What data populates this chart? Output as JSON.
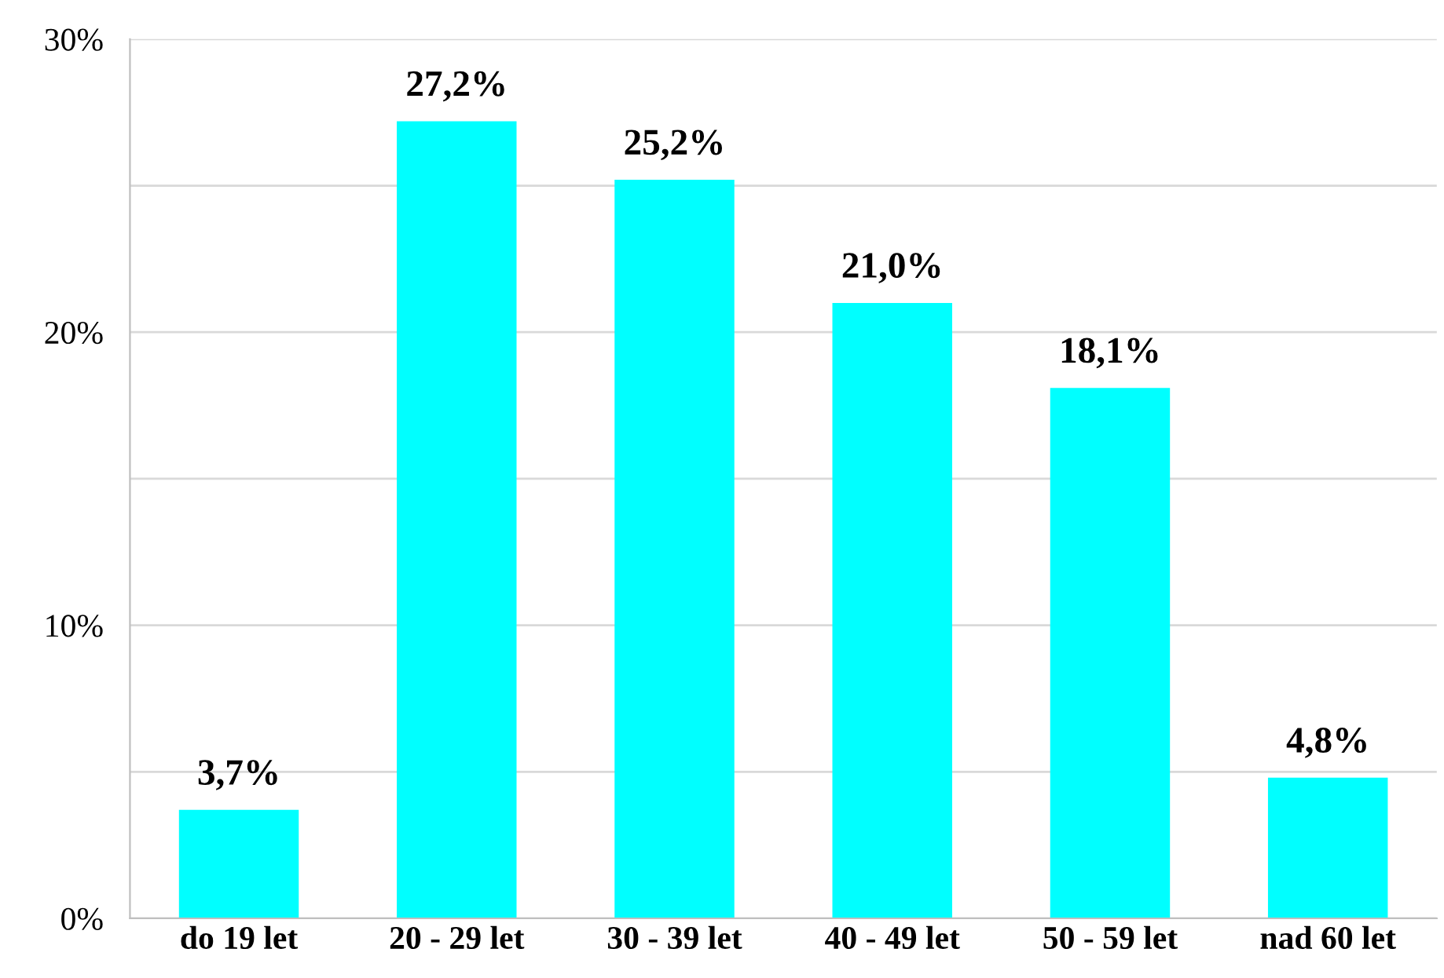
{
  "chart_data": {
    "type": "bar",
    "categories": [
      "do 19 let",
      "20 - 29 let",
      "30 - 39 let",
      "40 - 49 let",
      "50 - 59 let",
      "nad 60 let"
    ],
    "values": [
      3.7,
      27.2,
      25.2,
      21.0,
      18.1,
      4.8
    ],
    "value_labels": [
      "3,7%",
      "27,2%",
      "25,2%",
      "21,0%",
      "18,1%",
      "4,8%"
    ],
    "color": "#00ffff",
    "ylim": [
      0,
      30
    ],
    "yticks": [
      {
        "value": 0,
        "label": "0%"
      },
      {
        "value": 5,
        "label": null
      },
      {
        "value": 10,
        "label": "10%"
      },
      {
        "value": 15,
        "label": null
      },
      {
        "value": 20,
        "label": "20%"
      },
      {
        "value": 25,
        "label": null
      },
      {
        "value": 30,
        "label": "30%"
      }
    ],
    "grid": "y"
  }
}
